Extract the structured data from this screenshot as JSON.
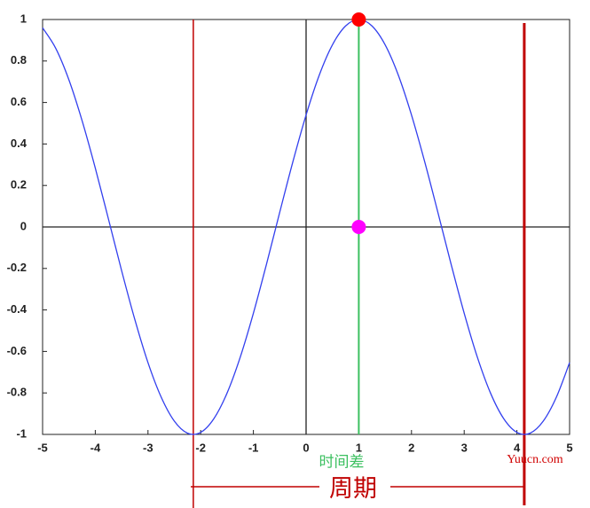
{
  "chart_data": {
    "type": "line",
    "x": [
      -5,
      -4.75,
      -4.5,
      -4.25,
      -4,
      -3.75,
      -3.5,
      -3.25,
      -3,
      -2.75,
      -2.5,
      -2.25,
      -2,
      -1.75,
      -1.5,
      -1.25,
      -1,
      -0.75,
      -0.5,
      -0.25,
      0,
      0.25,
      0.5,
      0.75,
      1,
      1.25,
      1.5,
      1.75,
      2,
      2.25,
      2.5,
      2.75,
      3,
      3.25,
      3.5,
      3.75,
      4,
      4.25,
      4.5,
      4.75,
      5
    ],
    "series": [
      {
        "color": "#3340ee",
        "values": [
          0.96,
          0.861,
          0.709,
          0.512,
          0.284,
          0.038,
          -0.211,
          -0.446,
          -0.654,
          -0.82,
          -0.936,
          -0.994,
          -0.99,
          -0.924,
          -0.801,
          -0.628,
          -0.416,
          -0.178,
          0.071,
          0.315,
          0.54,
          0.732,
          0.878,
          0.969,
          1,
          0.969,
          0.878,
          0.732,
          0.54,
          0.315,
          0.071,
          -0.178,
          -0.416,
          -0.628,
          -0.801,
          -0.924,
          -0.99,
          -0.994,
          -0.936,
          -0.82,
          -0.654
        ]
      }
    ],
    "xlim": [
      -5,
      5
    ],
    "ylim": [
      -1,
      1
    ],
    "xticks": [
      -5,
      -4,
      -3,
      -2,
      -1,
      0,
      1,
      2,
      3,
      4,
      5
    ],
    "yticks": [
      -1,
      -0.8,
      -0.6,
      -0.4,
      -0.2,
      0,
      0.2,
      0.4,
      0.6,
      0.8,
      1
    ],
    "period_lines": [
      -2.14,
      4.14
    ],
    "period_color": "#c00000",
    "phase_line": 1,
    "phase_color": "#3cc060",
    "peak": {
      "x": 1,
      "y": 1,
      "color": "#ff0000"
    },
    "zero_point": {
      "x": 1,
      "y": 0,
      "color": "#ff00ff"
    },
    "annotations": {
      "time_diff": "时间差",
      "period": "周期",
      "watermark": "Yuucn.com"
    }
  }
}
